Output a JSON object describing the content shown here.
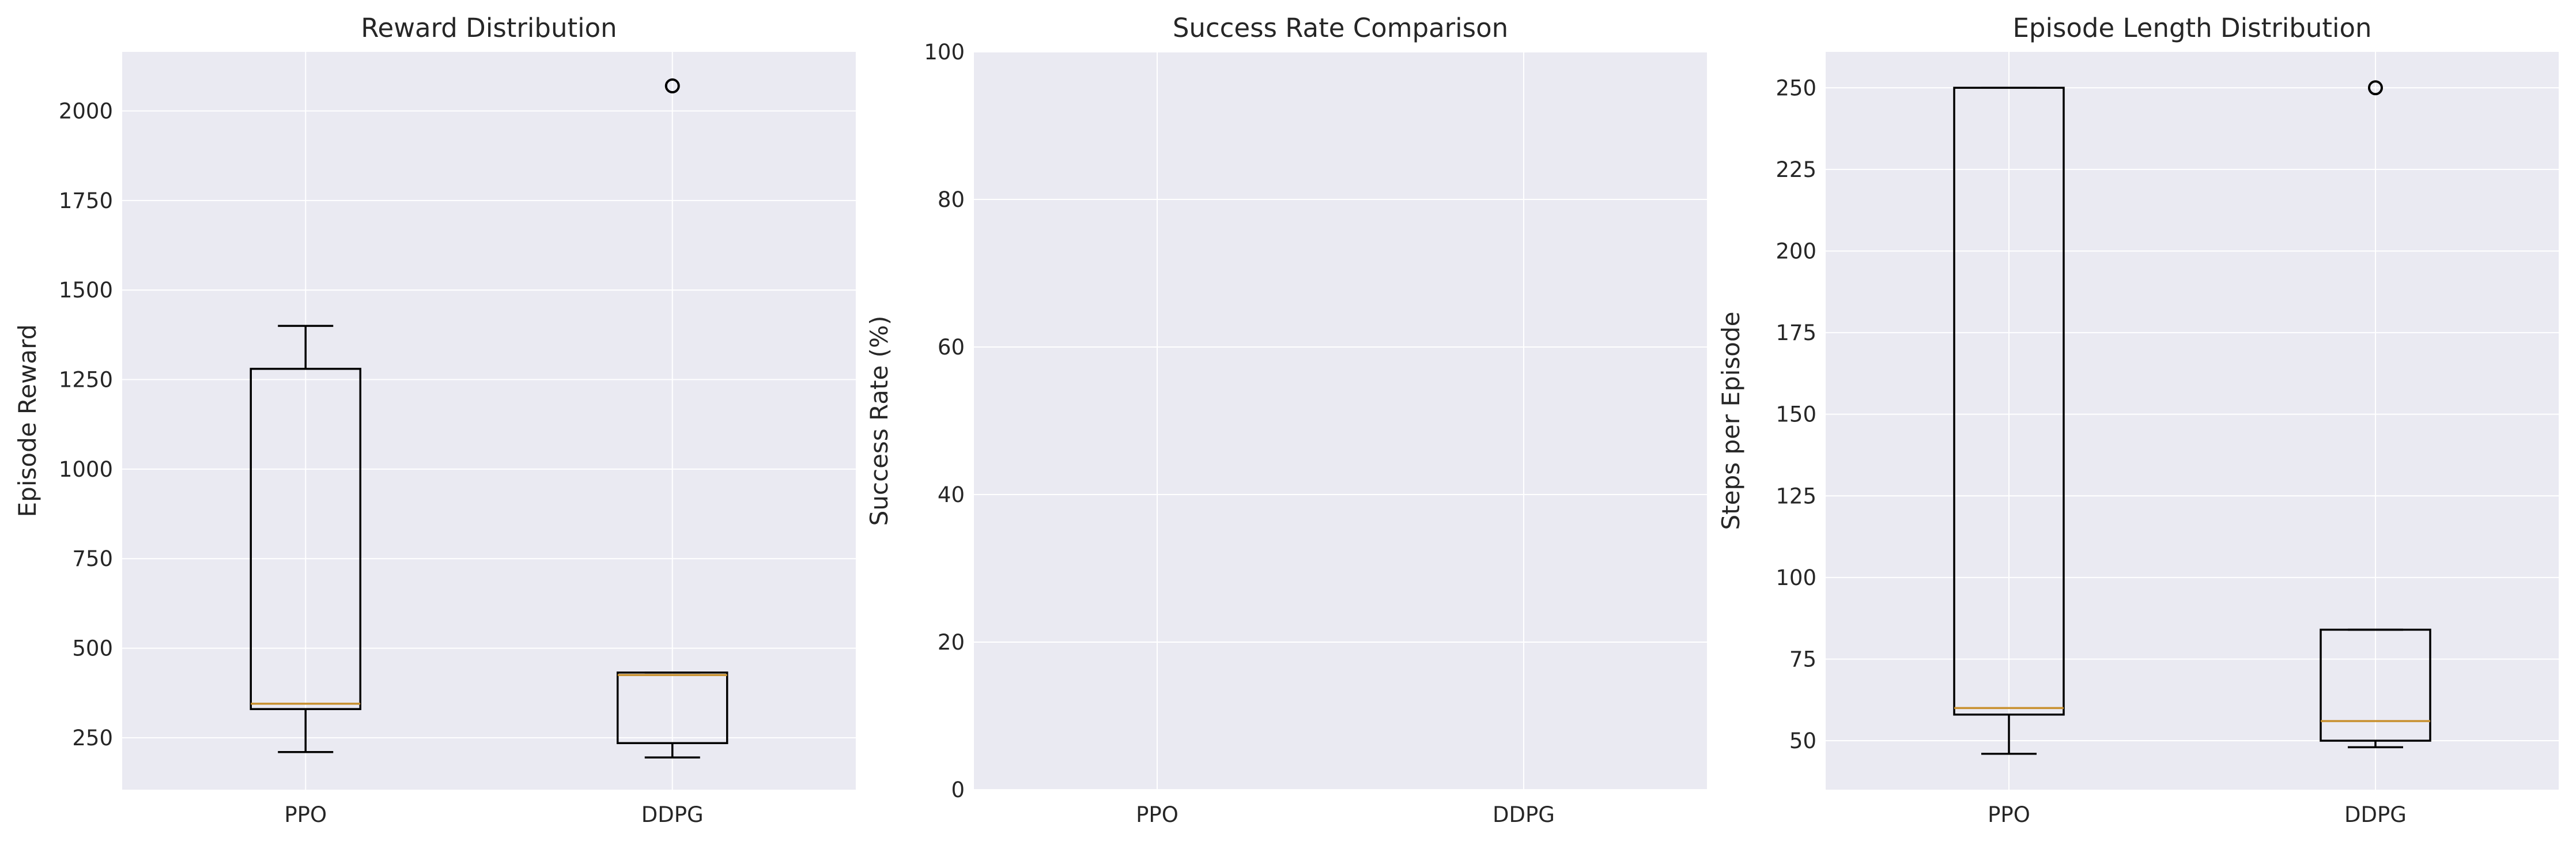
{
  "chart_data": [
    {
      "type": "box",
      "title": "Reward Distribution",
      "xlabel": "",
      "ylabel": "Episode Reward",
      "categories": [
        "PPO",
        "DDPG"
      ],
      "ylim": [
        105,
        2165
      ],
      "yticks": [
        250,
        500,
        750,
        1000,
        1250,
        1500,
        1750,
        2000
      ],
      "grid": true,
      "boxes": [
        {
          "name": "PPO",
          "whisker_low": 210,
          "q1": 330,
          "median": 345,
          "q3": 1280,
          "whisker_high": 1400,
          "fliers": []
        },
        {
          "name": "DDPG",
          "whisker_low": 195,
          "q1": 235,
          "median": 425,
          "q3": 432,
          "whisker_high": 432,
          "fliers": [
            2070
          ]
        }
      ]
    },
    {
      "type": "bar",
      "title": "Success Rate Comparison",
      "xlabel": "",
      "ylabel": "Success Rate (%)",
      "categories": [
        "PPO",
        "DDPG"
      ],
      "values": [
        0,
        0
      ],
      "ylim": [
        0,
        100
      ],
      "yticks": [
        0,
        20,
        40,
        60,
        80,
        100
      ],
      "grid": true
    },
    {
      "type": "box",
      "title": "Episode Length Distribution",
      "xlabel": "",
      "ylabel": "Steps per Episode",
      "categories": [
        "PPO",
        "DDPG"
      ],
      "ylim": [
        35,
        261
      ],
      "yticks": [
        50,
        75,
        100,
        125,
        150,
        175,
        200,
        225,
        250
      ],
      "grid": true,
      "boxes": [
        {
          "name": "PPO",
          "whisker_low": 46,
          "q1": 58,
          "median": 60,
          "q3": 250,
          "whisker_high": 250,
          "fliers": []
        },
        {
          "name": "DDPG",
          "whisker_low": 48,
          "q1": 50,
          "median": 56,
          "q3": 84,
          "whisker_high": 84,
          "fliers": [
            250
          ]
        }
      ]
    }
  ]
}
